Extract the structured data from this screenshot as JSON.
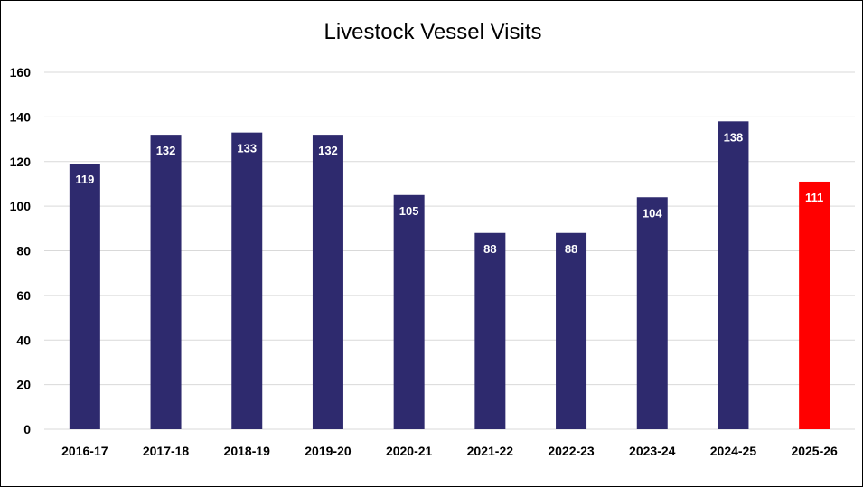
{
  "chart_data": {
    "type": "bar",
    "title": "Livestock Vessel Visits",
    "categories": [
      "2016-17",
      "2017-18",
      "2018-19",
      "2019-20",
      "2020-21",
      "2021-22",
      "2022-23",
      "2023-24",
      "2024-25",
      "2025-26"
    ],
    "values": [
      119,
      132,
      133,
      132,
      105,
      88,
      88,
      104,
      138,
      111
    ],
    "bar_colors": [
      "#2e2a6e",
      "#2e2a6e",
      "#2e2a6e",
      "#2e2a6e",
      "#2e2a6e",
      "#2e2a6e",
      "#2e2a6e",
      "#2e2a6e",
      "#2e2a6e",
      "#ff0000"
    ],
    "ylim": [
      0,
      160
    ],
    "yticks": [
      0,
      20,
      40,
      60,
      80,
      100,
      120,
      140,
      160
    ],
    "grid": true,
    "legend": "none",
    "data_labels": true
  }
}
